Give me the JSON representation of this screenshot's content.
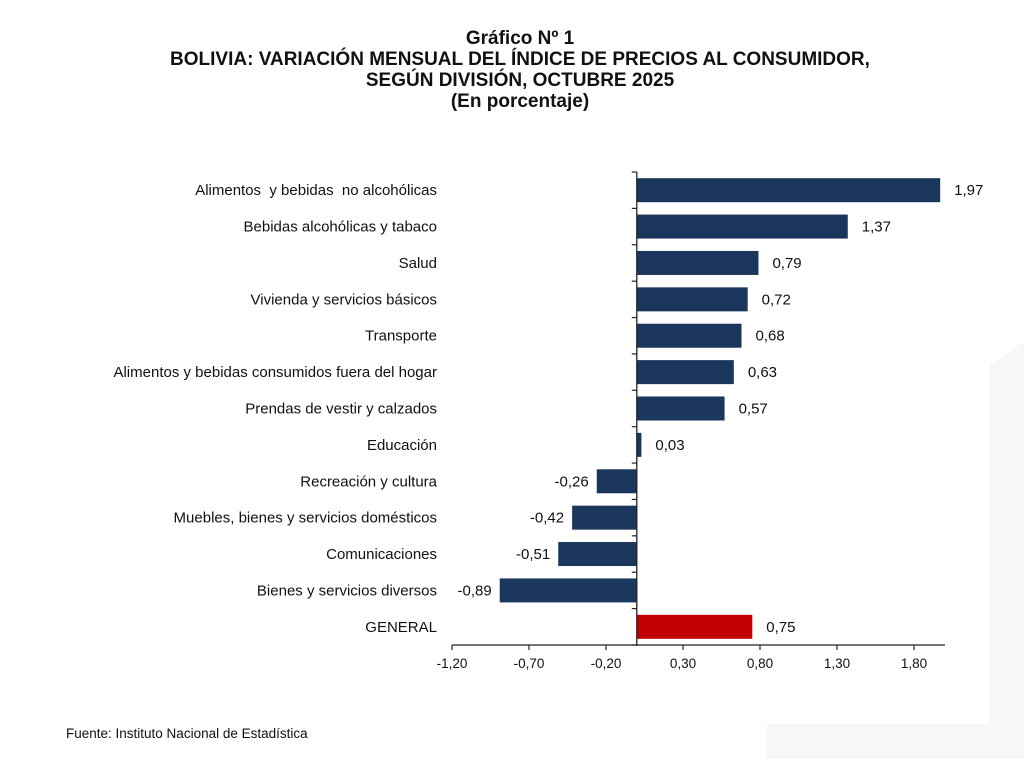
{
  "colors": {
    "bar": "#1B365D",
    "highlight": "#C00000",
    "axis": "#222222"
  },
  "header": {
    "line1": "Gráfico Nº 1",
    "line2": "BOLIVIA: VARIACIÓN MENSUAL DEL ÍNDICE DE PRECIOS AL CONSUMIDOR,",
    "line3": "SEGÚN DIVISIÓN, OCTUBRE 2025",
    "line4": "(En porcentaje)"
  },
  "footer": {
    "source": "Fuente: Instituto Nacional de Estadística"
  },
  "chart_data": {
    "type": "bar",
    "orientation": "horizontal",
    "title": "Gráfico Nº 1 — BOLIVIA: VARIACIÓN MENSUAL DEL ÍNDICE DE PRECIOS AL CONSUMIDOR, SEGÚN DIVISIÓN, OCTUBRE 2025 (En porcentaje)",
    "xlabel": "",
    "ylabel": "",
    "categories": [
      "Alimentos  y bebidas  no alcohólicas",
      "Bebidas alcohólicas y tabaco",
      "Salud",
      "Vivienda y servicios básicos",
      "Transporte",
      "Alimentos y bebidas consumidos fuera del hogar",
      "Prendas de vestir y calzados",
      "Educación",
      "Recreación y cultura",
      "Muebles, bienes y servicios domésticos",
      "Comunicaciones",
      "Bienes y servicios diversos",
      "GENERAL"
    ],
    "values": [
      1.97,
      1.37,
      0.79,
      0.72,
      0.68,
      0.63,
      0.57,
      0.03,
      -0.26,
      -0.42,
      -0.51,
      -0.89,
      0.75
    ],
    "value_labels": [
      "1,97",
      "1,37",
      "0,79",
      "0,72",
      "0,68",
      "0,63",
      "0,57",
      "0,03",
      "-0,26",
      "-0,42",
      "-0,51",
      "-0,89",
      "0,75"
    ],
    "highlight_index": 12,
    "xlim": [
      -1.2,
      2.0
    ],
    "xticks": [
      -1.2,
      -0.7,
      -0.2,
      0.3,
      0.8,
      1.3,
      1.8
    ],
    "xtick_labels": [
      "-1,20",
      "-0,70",
      "-0,20",
      "0,30",
      "0,80",
      "1,30",
      "1,80"
    ],
    "grid": false,
    "legend": "none"
  }
}
